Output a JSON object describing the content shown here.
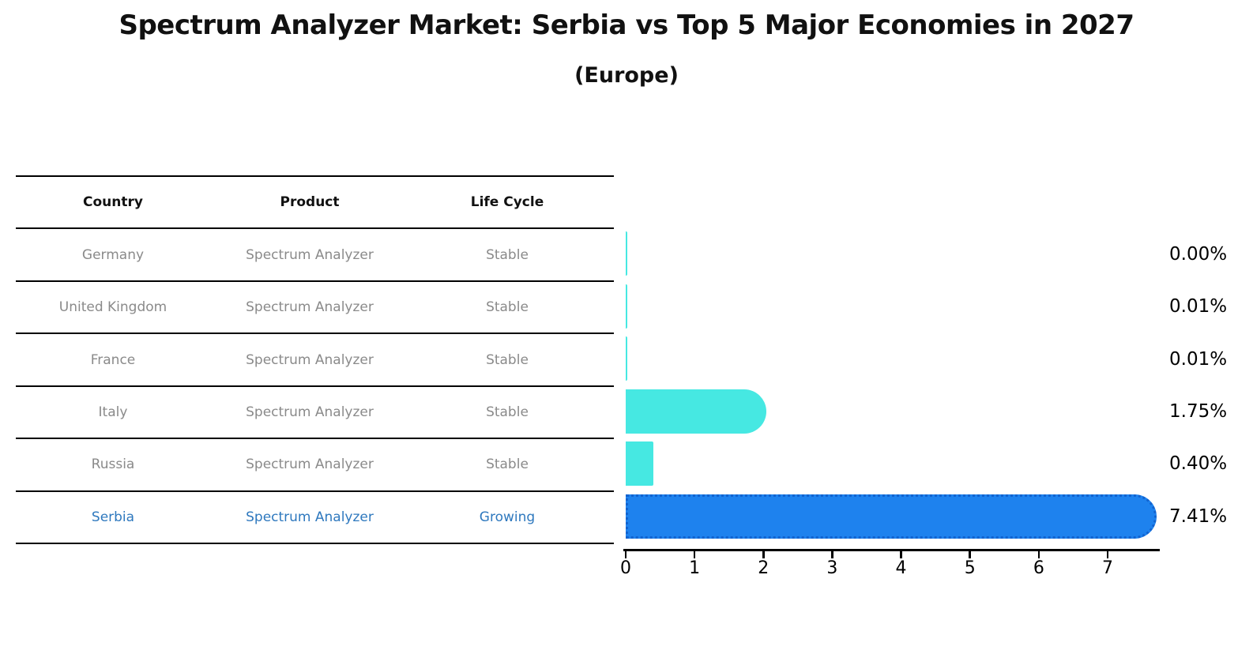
{
  "title": "Spectrum Analyzer Market: Serbia vs Top 5 Major Economies in 2027",
  "subtitle": "(Europe)",
  "table": {
    "headers": [
      "Country",
      "Product",
      "Life Cycle"
    ],
    "rows": [
      {
        "country": "Germany",
        "product": "Spectrum Analyzer",
        "life_cycle": "Stable",
        "highlight": false
      },
      {
        "country": "United Kingdom",
        "product": "Spectrum Analyzer",
        "life_cycle": "Stable",
        "highlight": false
      },
      {
        "country": "France",
        "product": "Spectrum Analyzer",
        "life_cycle": "Stable",
        "highlight": false
      },
      {
        "country": "Italy",
        "product": "Spectrum Analyzer",
        "life_cycle": "Stable",
        "highlight": false
      },
      {
        "country": "Russia",
        "product": "Spectrum Analyzer",
        "life_cycle": "Stable",
        "highlight": false
      },
      {
        "country": "Serbia",
        "product": "Spectrum Analyzer",
        "life_cycle": "Growing",
        "highlight": true
      }
    ]
  },
  "chart_data": {
    "type": "bar",
    "orientation": "horizontal",
    "title": "Spectrum Analyzer Market: Serbia vs Top 5 Major Economies in 2027",
    "subtitle": "(Europe)",
    "categories": [
      "Germany",
      "United Kingdom",
      "France",
      "Italy",
      "Russia",
      "Serbia"
    ],
    "values": [
      0.0,
      0.01,
      0.01,
      1.75,
      0.4,
      7.41
    ],
    "value_labels": [
      "0.00%",
      "0.01%",
      "0.01%",
      "1.75%",
      "0.40%",
      "7.41%"
    ],
    "x_ticks": [
      "0",
      "1",
      "2",
      "3",
      "4",
      "5",
      "6",
      "7"
    ],
    "xlim": [
      0,
      7.76
    ],
    "grid": false,
    "legend": false,
    "highlight_index": 5,
    "colors": {
      "bar": "#46e8e2",
      "highlight_bar": "#1e82ee",
      "highlight_border": "#1263cf",
      "highlight_text": "#2e78be",
      "row_text": "#8a8a8a",
      "header_text": "#111111",
      "axis": "#000000"
    }
  }
}
